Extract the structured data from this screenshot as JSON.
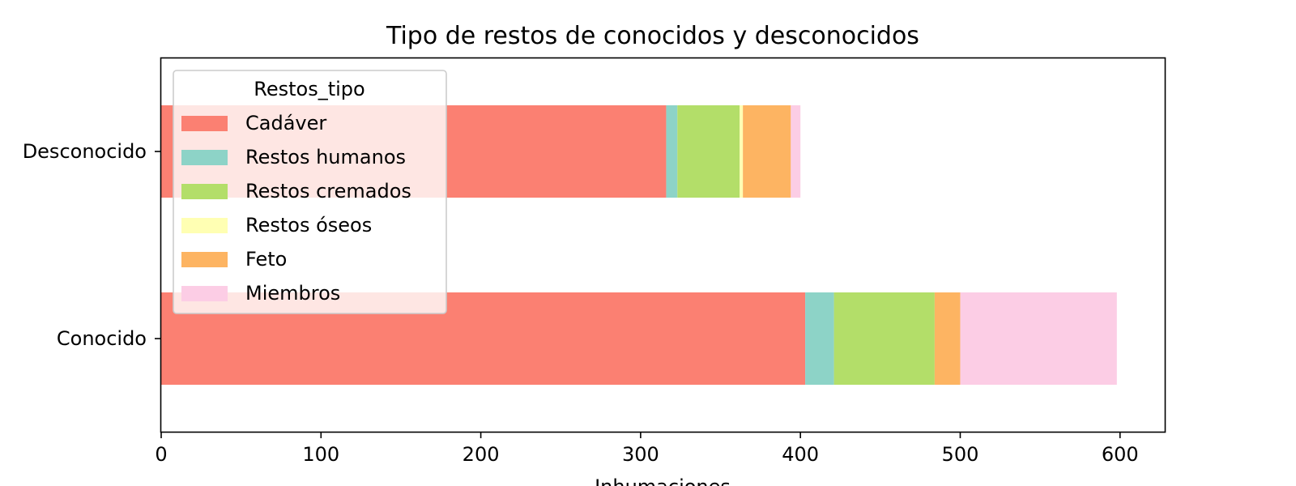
{
  "chart_data": {
    "type": "bar",
    "orientation": "horizontal",
    "stacked": true,
    "title": "Tipo de restos de conocidos y desconocidos",
    "xlabel": "Inhumaciones",
    "ylabel": "",
    "categories": [
      "Desconocido",
      "Conocido"
    ],
    "xlim": [
      0,
      628
    ],
    "xticks": [
      0,
      100,
      200,
      300,
      400,
      500,
      600
    ],
    "grid": false,
    "legend": {
      "title": "Restos_tipo",
      "placement": "top-left"
    },
    "series": [
      {
        "name": "Cadáver",
        "color": "#fb8072",
        "values": [
          316,
          403
        ]
      },
      {
        "name": "Restos humanos",
        "color": "#8dd3c7",
        "values": [
          7,
          18
        ]
      },
      {
        "name": "Restos cremados",
        "color": "#b3de69",
        "values": [
          39,
          63
        ]
      },
      {
        "name": "Restos óseos",
        "color": "#ffffb3",
        "values": [
          2,
          0
        ]
      },
      {
        "name": "Feto",
        "color": "#fdb462",
        "values": [
          30,
          16
        ]
      },
      {
        "name": "Miembros",
        "color": "#fccde5",
        "values": [
          6,
          98
        ]
      }
    ]
  }
}
